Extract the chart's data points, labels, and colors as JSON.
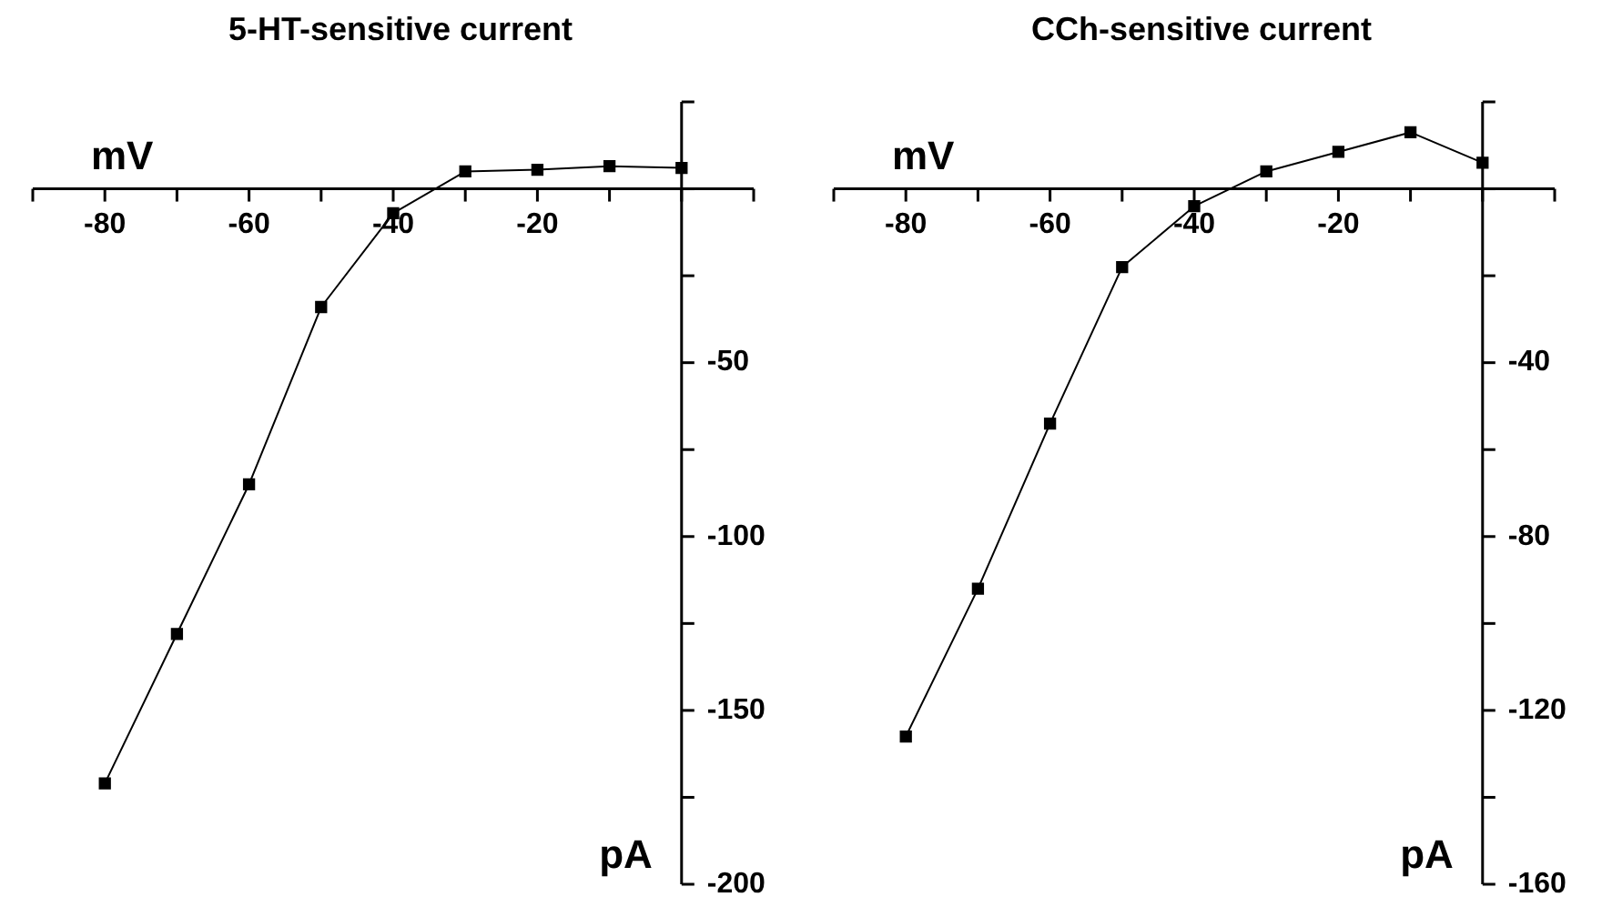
{
  "chart_data": [
    {
      "type": "line",
      "title": "5-HT-sensitive current",
      "xlabel": "mV",
      "ylabel": "pA",
      "x": [
        -80,
        -70,
        -60,
        -50,
        -40,
        -30,
        -20,
        -10,
        0
      ],
      "series": [
        {
          "color": "#000000",
          "values": [
            -171,
            -128,
            -85,
            -34,
            -7,
            5,
            5.5,
            6.5,
            6
          ]
        }
      ],
      "xlim": [
        -90,
        10
      ],
      "xticks": [
        {
          "value": -90,
          "label": null
        },
        -80,
        {
          "value": -70,
          "label": null
        },
        -60,
        {
          "value": -50,
          "label": null
        },
        -40,
        {
          "value": -30,
          "label": null
        },
        -20,
        {
          "value": -10,
          "label": null
        },
        {
          "value": 0,
          "label": null
        },
        {
          "value": 10,
          "label": null
        }
      ],
      "ylim": [
        -200,
        25
      ],
      "yticks": [
        {
          "value": 25,
          "label": null
        },
        {
          "value": 0,
          "label": null
        },
        {
          "value": -25,
          "label": null
        },
        -50,
        {
          "value": -75,
          "label": null
        },
        -100,
        {
          "value": -125,
          "label": null
        },
        -150,
        {
          "value": -175,
          "label": null
        },
        -200
      ],
      "grid": false,
      "legend": false,
      "marker": "square",
      "line_style": "solid"
    },
    {
      "type": "line",
      "title": "CCh-sensitive current",
      "xlabel": "mV",
      "ylabel": "pA",
      "x": [
        -80,
        -70,
        -60,
        -50,
        -40,
        -30,
        -20,
        -10,
        0
      ],
      "series": [
        {
          "color": "#000000",
          "values": [
            -126,
            -92,
            -54,
            -18,
            -4,
            4,
            8.5,
            13,
            6
          ]
        }
      ],
      "xlim": [
        -90,
        10
      ],
      "xticks": [
        {
          "value": -90,
          "label": null
        },
        -80,
        {
          "value": -70,
          "label": null
        },
        -60,
        {
          "value": -50,
          "label": null
        },
        -40,
        {
          "value": -30,
          "label": null
        },
        -20,
        {
          "value": -10,
          "label": null
        },
        {
          "value": 0,
          "label": null
        },
        {
          "value": 10,
          "label": null
        }
      ],
      "ylim": [
        -160,
        20
      ],
      "yticks": [
        {
          "value": 20,
          "label": null
        },
        {
          "value": 0,
          "label": null
        },
        {
          "value": -20,
          "label": null
        },
        -40,
        {
          "value": -60,
          "label": null
        },
        -80,
        {
          "value": -100,
          "label": null
        },
        -120,
        {
          "value": -140,
          "label": null
        },
        -160
      ],
      "grid": false,
      "legend": false,
      "marker": "square",
      "line_style": "solid"
    }
  ]
}
